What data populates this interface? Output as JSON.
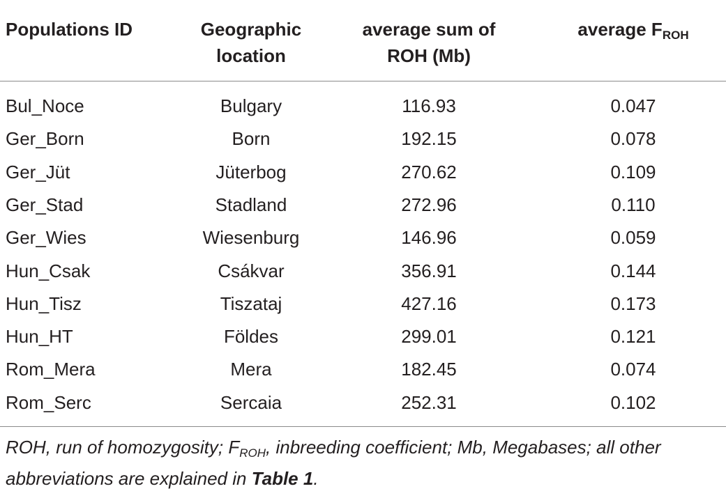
{
  "table": {
    "header": [
      {
        "lines": [
          "Populations ID"
        ]
      },
      {
        "lines": [
          "Geographic",
          "location"
        ]
      },
      {
        "lines": [
          "average sum of",
          "ROH (Mb)"
        ]
      },
      {
        "text": "average F",
        "sub": "ROH"
      }
    ],
    "rows": [
      [
        "Bul_Noce",
        "Bulgary",
        "116.93",
        "0.047"
      ],
      [
        "Ger_Born",
        "Born",
        "192.15",
        "0.078"
      ],
      [
        "Ger_Jüt",
        "Jüterbog",
        "270.62",
        "0.109"
      ],
      [
        "Ger_Stad",
        "Stadland",
        "272.96",
        "0.110"
      ],
      [
        "Ger_Wies",
        "Wiesenburg",
        "146.96",
        "0.059"
      ],
      [
        "Hun_Csak",
        "Csákvar",
        "356.91",
        "0.144"
      ],
      [
        "Hun_Tisz",
        "Tiszataj",
        "427.16",
        "0.173"
      ],
      [
        "Hun_HT",
        "Földes",
        "299.01",
        "0.121"
      ],
      [
        "Rom_Mera",
        "Mera",
        "182.45",
        "0.074"
      ],
      [
        "Rom_Serc",
        "Sercaia",
        "252.31",
        "0.102"
      ]
    ],
    "footnote": [
      "ROH, run of homozygosity; ",
      "F",
      "ROH",
      ", inbreeding coefficient; Mb, Megabases; all other abbreviations are explained in ",
      "Table 1",
      "."
    ]
  }
}
